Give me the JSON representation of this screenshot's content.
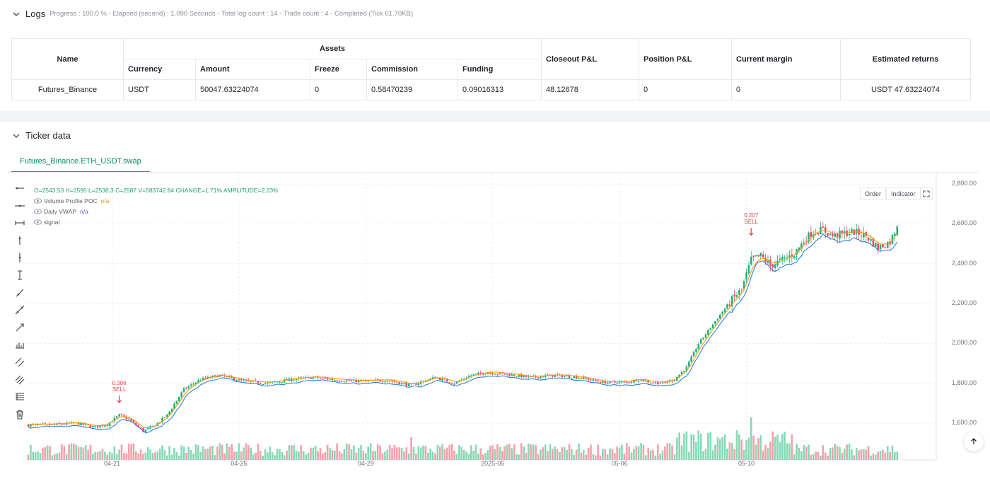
{
  "logs": {
    "title": "Logs",
    "status": "Progress : 100.0 % - Elapsed (second) : 1.090  Seconds - Total log count : 14 - Trade count : 4 - Completed (Tick 61.70KB)",
    "table": {
      "headers": {
        "name": "Name",
        "assets": "Assets",
        "currency": "Currency",
        "amount": "Amount",
        "freeze": "Freeze",
        "commission": "Commission",
        "funding": "Funding",
        "closeout_pnl": "Closeout P&L",
        "position_pnl": "Position P&L",
        "current_margin": "Current margin",
        "estimated_returns": "Estimated returns"
      },
      "row": {
        "name": "Futures_Binance",
        "currency": "USDT",
        "amount": "50047.63224074",
        "freeze": "0",
        "commission": "0.58470239",
        "funding": "0.09016313",
        "closeout_pnl": "48.12678",
        "position_pnl": "0",
        "current_margin": "0",
        "estimated_returns": "USDT 47.63224074"
      }
    }
  },
  "ticker": {
    "title": "Ticker data",
    "tab_label": "Futures_Binance.ETH_USDT.swap",
    "ohlc_line": "O=2543.53  H=2595  L=2538.3  C=2587  V=583742.84  CHANGE=1.71%  AMPLITUDE=2.23%",
    "legend": [
      {
        "label": "Volume Profile POC",
        "value": "n/a",
        "color": "#f59e0b"
      },
      {
        "label": "Daily VWAP",
        "value": "n/a",
        "color": "#6b5fc7"
      },
      {
        "label": "signal",
        "value": "",
        "color": "#5b6068"
      }
    ],
    "buttons": {
      "order": "Order",
      "indicator": "Indicator"
    },
    "tools": [
      "horizontal-ray-icon",
      "horizontal-line-icon",
      "horizontal-segment-icon",
      "vertical-ray-icon",
      "vertical-line-icon",
      "vertical-segment-icon",
      "trend-ray-icon",
      "trend-line-icon",
      "arrow-line-icon",
      "price-range-icon",
      "parallel-channel-icon",
      "fib-lines-icon",
      "fib-levels-icon",
      "delete-icon"
    ]
  },
  "colors": {
    "up": "#22b07d",
    "down": "#f0485a",
    "poc": "#f59e0b",
    "vwap": "#2f7fd6",
    "accent": "#14a36f"
  },
  "chart_data": {
    "type": "candlestick",
    "ylim": [
      1430,
      2850
    ],
    "y_ticks": [
      "2,800.00",
      "2,600.00",
      "2,400.00",
      "2,200.00",
      "2,000.00",
      "1,800.00",
      "1,600.00"
    ],
    "y_tick_values": [
      2800,
      2600,
      2400,
      2200,
      2000,
      1800,
      1600
    ],
    "x_ticks": [
      "04-21",
      "04-25",
      "04-29",
      "2025-05",
      "05-06",
      "05-10"
    ],
    "x_tick_index": [
      35,
      88,
      141,
      194,
      247,
      300
    ],
    "anchors": [
      [
        0,
        1590
      ],
      [
        10,
        1592
      ],
      [
        20,
        1600
      ],
      [
        28,
        1580
      ],
      [
        33,
        1595
      ],
      [
        38,
        1640
      ],
      [
        42,
        1620
      ],
      [
        48,
        1560
      ],
      [
        53,
        1590
      ],
      [
        58,
        1640
      ],
      [
        65,
        1770
      ],
      [
        72,
        1820
      ],
      [
        80,
        1840
      ],
      [
        90,
        1810
      ],
      [
        100,
        1800
      ],
      [
        110,
        1820
      ],
      [
        120,
        1830
      ],
      [
        130,
        1815
      ],
      [
        140,
        1810
      ],
      [
        150,
        1815
      ],
      [
        160,
        1790
      ],
      [
        170,
        1830
      ],
      [
        178,
        1800
      ],
      [
        185,
        1840
      ],
      [
        192,
        1855
      ],
      [
        200,
        1845
      ],
      [
        210,
        1830
      ],
      [
        220,
        1840
      ],
      [
        230,
        1830
      ],
      [
        240,
        1805
      ],
      [
        250,
        1805
      ],
      [
        255,
        1820
      ],
      [
        260,
        1805
      ],
      [
        265,
        1800
      ],
      [
        270,
        1820
      ],
      [
        275,
        1880
      ],
      [
        280,
        2000
      ],
      [
        285,
        2080
      ],
      [
        290,
        2160
      ],
      [
        294,
        2220
      ],
      [
        298,
        2270
      ],
      [
        302,
        2420
      ],
      [
        306,
        2440
      ],
      [
        310,
        2390
      ],
      [
        315,
        2420
      ],
      [
        320,
        2450
      ],
      [
        325,
        2530
      ],
      [
        328,
        2560
      ],
      [
        332,
        2570
      ],
      [
        336,
        2540
      ],
      [
        340,
        2550
      ],
      [
        345,
        2560
      ],
      [
        350,
        2540
      ],
      [
        355,
        2480
      ],
      [
        360,
        2510
      ],
      [
        363,
        2587
      ]
    ],
    "n_candles": 364,
    "signals": [
      {
        "index": 38,
        "price": 1640,
        "value": "0.306",
        "label": "SELL"
      },
      {
        "index": 302,
        "price": 2480,
        "value": "0.207",
        "label": "SELL"
      }
    ],
    "last_candle": {
      "open": 2543.53,
      "high": 2595,
      "low": 2538.3,
      "close": 2587,
      "volume": 583742.84
    }
  }
}
